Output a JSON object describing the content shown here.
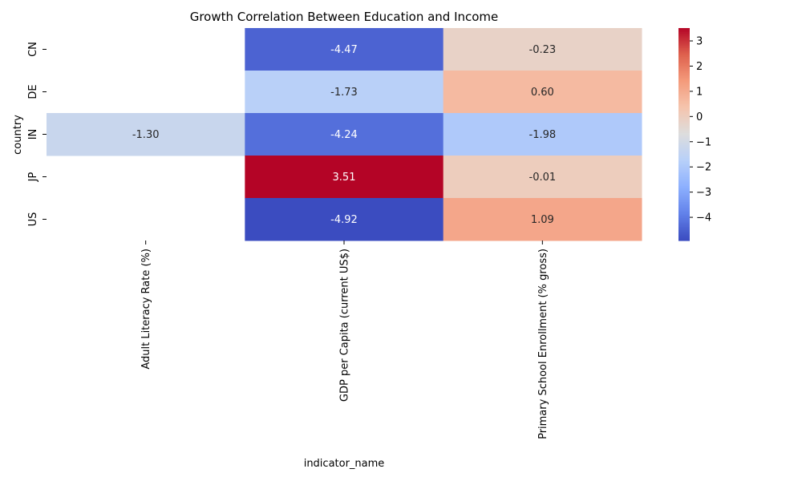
{
  "chart_data": {
    "type": "heatmap",
    "title": "Growth Correlation Between Education and Income",
    "xlabel": "indicator_name",
    "ylabel": "country",
    "columns": [
      "Adult Literacy Rate (%)",
      "GDP per Capita (current US$)",
      "Primary School Enrollment (% gross)"
    ],
    "rows": [
      "CN",
      "DE",
      "IN",
      "JP",
      "US"
    ],
    "values": [
      [
        null,
        -4.47,
        -0.23
      ],
      [
        null,
        -1.73,
        0.6
      ],
      [
        -1.3,
        -4.24,
        -1.98
      ],
      [
        null,
        3.51,
        -0.01
      ],
      [
        null,
        -4.92,
        1.09
      ]
    ],
    "colormap": "coolwarm",
    "vmin": -4.92,
    "vmax": 3.51,
    "colorbar_ticks": [
      3,
      2,
      1,
      0,
      -1,
      -2,
      -3,
      -4
    ],
    "annotation_format": "2 decimals"
  }
}
